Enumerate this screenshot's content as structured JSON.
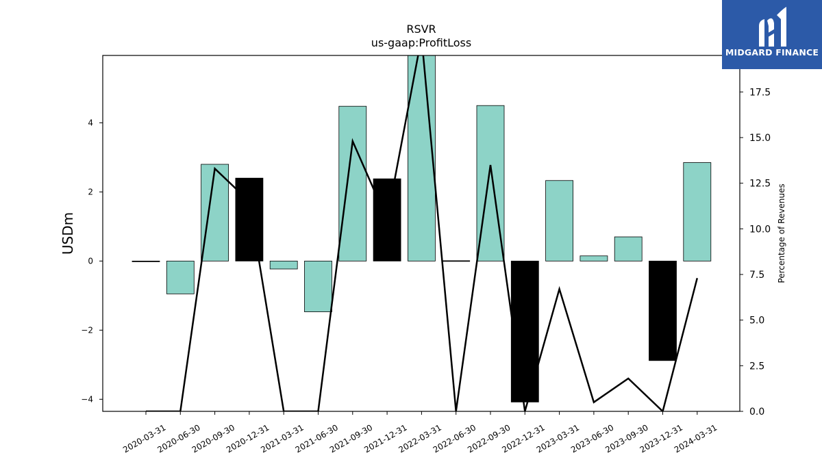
{
  "brand": {
    "name": "MIDGARD FINANCE",
    "bg_color": "#2c5aa8"
  },
  "chart_data": {
    "type": "bar",
    "title": "RSVR",
    "subtitle": "us-gaap:ProfitLoss",
    "ylabel": "USDm",
    "y2label": "Percentage of Revenues",
    "ylim": [
      -4.35,
      5.95
    ],
    "y2lim": [
      0,
      19.5
    ],
    "yticks": [
      -4,
      -2,
      0,
      2,
      4
    ],
    "y2ticks": [
      0.0,
      2.5,
      5.0,
      7.5,
      10.0,
      12.5,
      15.0,
      17.5
    ],
    "categories": [
      "2020-03-31",
      "2020-06-30",
      "2020-09-30",
      "2020-12-31",
      "2021-03-31",
      "2021-06-30",
      "2021-09-30",
      "2021-12-31",
      "2022-03-31",
      "2022-06-30",
      "2022-09-30",
      "2022-12-31",
      "2023-03-31",
      "2023-06-30",
      "2023-09-30",
      "2023-12-31",
      "2024-03-31"
    ],
    "series": [
      {
        "type": "bar",
        "values": [
          0.0,
          -0.95,
          2.8,
          2.4,
          -0.23,
          -1.47,
          4.48,
          2.38,
          5.95,
          0.01,
          4.5,
          -4.08,
          2.33,
          0.15,
          0.7,
          -2.88,
          2.85
        ],
        "colors": [
          "#000000",
          "#8dd3c7",
          "#8dd3c7",
          "#000000",
          "#8dd3c7",
          "#8dd3c7",
          "#8dd3c7",
          "#000000",
          "#8dd3c7",
          "#000000",
          "#8dd3c7",
          "#000000",
          "#8dd3c7",
          "#8dd3c7",
          "#8dd3c7",
          "#000000",
          "#8dd3c7"
        ]
      },
      {
        "type": "line",
        "axis": "right",
        "color": "#000000",
        "values": [
          0.0,
          0.0,
          13.3,
          11.5,
          0.0,
          0.0,
          14.8,
          10.5,
          20.5,
          0.0,
          13.5,
          0.0,
          6.7,
          0.5,
          1.8,
          0.0,
          7.3
        ]
      }
    ]
  }
}
